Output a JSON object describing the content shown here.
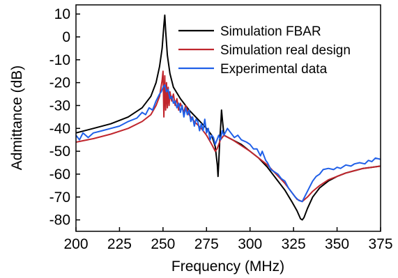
{
  "chart_data": {
    "type": "line",
    "title": "",
    "xlabel": "Frequency (MHz)",
    "ylabel": "Admittance (dB)",
    "xlim": [
      200,
      375
    ],
    "ylim": [
      -85,
      14
    ],
    "xticks": [
      200,
      225,
      250,
      275,
      300,
      325,
      350,
      375
    ],
    "yticks": [
      10,
      0,
      -10,
      -20,
      -30,
      -40,
      -50,
      -60,
      -70,
      -80
    ],
    "grid": false,
    "legend_position": "top-right",
    "series": [
      {
        "name": "Simulation FBAR",
        "color": "#000000",
        "points": [
          [
            200,
            -42
          ],
          [
            210,
            -40
          ],
          [
            220,
            -38
          ],
          [
            230,
            -35
          ],
          [
            238,
            -31
          ],
          [
            243,
            -26
          ],
          [
            246,
            -20
          ],
          [
            248,
            -13
          ],
          [
            249.5,
            -5
          ],
          [
            250.5,
            5
          ],
          [
            251,
            9.5
          ],
          [
            251.5,
            3
          ],
          [
            252.5,
            -8
          ],
          [
            254,
            -16
          ],
          [
            256,
            -22
          ],
          [
            260,
            -27
          ],
          [
            265,
            -32
          ],
          [
            270,
            -36
          ],
          [
            275,
            -40
          ],
          [
            278,
            -43
          ],
          [
            280,
            -48
          ],
          [
            281.2,
            -56
          ],
          [
            281.6,
            -61
          ],
          [
            282,
            -55
          ],
          [
            282.6,
            -45
          ],
          [
            283.2,
            -38
          ],
          [
            283.6,
            -32
          ],
          [
            284.2,
            -37
          ],
          [
            285,
            -43
          ],
          [
            290,
            -45
          ],
          [
            295,
            -47
          ],
          [
            300,
            -50
          ],
          [
            305,
            -53
          ],
          [
            310,
            -57
          ],
          [
            315,
            -62
          ],
          [
            320,
            -67
          ],
          [
            324,
            -72
          ],
          [
            327,
            -76
          ],
          [
            329,
            -79.5
          ],
          [
            330,
            -80
          ],
          [
            331,
            -79
          ],
          [
            333,
            -75
          ],
          [
            336,
            -70
          ],
          [
            340,
            -66
          ],
          [
            345,
            -63
          ],
          [
            350,
            -61
          ],
          [
            355,
            -59.5
          ],
          [
            360,
            -58.5
          ],
          [
            365,
            -57.5
          ],
          [
            370,
            -57
          ],
          [
            375,
            -56.5
          ]
        ]
      },
      {
        "name": "Simulation real design",
        "color": "#c0262d",
        "points": [
          [
            200,
            -46
          ],
          [
            210,
            -44.5
          ],
          [
            220,
            -42.5
          ],
          [
            230,
            -40
          ],
          [
            238,
            -37
          ],
          [
            243,
            -34
          ],
          [
            246,
            -30
          ],
          [
            248,
            -26
          ],
          [
            249.5,
            -19
          ],
          [
            250,
            -15
          ],
          [
            250.5,
            -35
          ],
          [
            251,
            -17
          ],
          [
            251.5,
            -32
          ],
          [
            252,
            -20
          ],
          [
            252.5,
            -31
          ],
          [
            253,
            -22
          ],
          [
            253.5,
            -30
          ],
          [
            254,
            -24
          ],
          [
            255,
            -28
          ],
          [
            256,
            -25
          ],
          [
            257,
            -30
          ],
          [
            258,
            -27
          ],
          [
            259,
            -32
          ],
          [
            260,
            -29
          ],
          [
            262,
            -33
          ],
          [
            263,
            -30
          ],
          [
            265,
            -34
          ],
          [
            268,
            -37
          ],
          [
            272,
            -40
          ],
          [
            275,
            -43
          ],
          [
            278,
            -47
          ],
          [
            280,
            -50
          ],
          [
            281,
            -49
          ],
          [
            282,
            -47
          ],
          [
            283,
            -45
          ],
          [
            285,
            -43
          ],
          [
            290,
            -45
          ],
          [
            295,
            -47.5
          ],
          [
            300,
            -50
          ],
          [
            305,
            -53
          ],
          [
            310,
            -56
          ],
          [
            315,
            -60
          ],
          [
            320,
            -64
          ],
          [
            324,
            -68
          ],
          [
            327,
            -71
          ],
          [
            330,
            -72
          ],
          [
            333,
            -70
          ],
          [
            336,
            -67.5
          ],
          [
            340,
            -65
          ],
          [
            345,
            -62.5
          ],
          [
            350,
            -61
          ],
          [
            355,
            -59.5
          ],
          [
            360,
            -58.5
          ],
          [
            365,
            -57.5
          ],
          [
            370,
            -57
          ],
          [
            375,
            -56.5
          ]
        ]
      },
      {
        "name": "Experimental data",
        "color": "#1f5fe8",
        "points": [
          [
            200,
            -43
          ],
          [
            202,
            -45
          ],
          [
            204,
            -42
          ],
          [
            207,
            -44
          ],
          [
            210,
            -42
          ],
          [
            215,
            -41
          ],
          [
            220,
            -40
          ],
          [
            225,
            -39
          ],
          [
            230,
            -37
          ],
          [
            235,
            -35.5
          ],
          [
            238,
            -33
          ],
          [
            240,
            -34
          ],
          [
            242,
            -31
          ],
          [
            244,
            -32
          ],
          [
            246,
            -28
          ],
          [
            248,
            -25
          ],
          [
            249,
            -24
          ],
          [
            250,
            -22
          ],
          [
            251,
            -21
          ],
          [
            252,
            -24
          ],
          [
            253,
            -23
          ],
          [
            254,
            -27
          ],
          [
            255,
            -26
          ],
          [
            256,
            -29
          ],
          [
            257,
            -28
          ],
          [
            258,
            -31
          ],
          [
            259,
            -29
          ],
          [
            260,
            -33
          ],
          [
            261,
            -30
          ],
          [
            262,
            -35
          ],
          [
            263,
            -31
          ],
          [
            264,
            -34
          ],
          [
            265,
            -32
          ],
          [
            266,
            -37
          ],
          [
            267,
            -35
          ],
          [
            268,
            -39
          ],
          [
            269,
            -36
          ],
          [
            270,
            -37
          ],
          [
            271,
            -41
          ],
          [
            272,
            -38
          ],
          [
            273,
            -41
          ],
          [
            274,
            -36
          ],
          [
            275,
            -42
          ],
          [
            276,
            -40
          ],
          [
            277,
            -45
          ],
          [
            278,
            -43
          ],
          [
            279,
            -44
          ],
          [
            280,
            -47
          ],
          [
            281,
            -45
          ],
          [
            282,
            -43
          ],
          [
            283,
            -45
          ],
          [
            284,
            -41
          ],
          [
            285,
            -43
          ],
          [
            287,
            -40
          ],
          [
            289,
            -42
          ],
          [
            291,
            -44
          ],
          [
            293,
            -43
          ],
          [
            295,
            -45
          ],
          [
            298,
            -46
          ],
          [
            300,
            -47
          ],
          [
            302,
            -49
          ],
          [
            304,
            -49
          ],
          [
            306,
            -52
          ],
          [
            307,
            -50
          ],
          [
            309,
            -54
          ],
          [
            310,
            -55
          ],
          [
            312,
            -58
          ],
          [
            314,
            -59
          ],
          [
            316,
            -60
          ],
          [
            318,
            -62
          ],
          [
            320,
            -63
          ],
          [
            322,
            -66
          ],
          [
            324,
            -68
          ],
          [
            326,
            -70
          ],
          [
            328,
            -71.5
          ],
          [
            330,
            -72
          ],
          [
            332,
            -69
          ],
          [
            334,
            -66
          ],
          [
            336,
            -63
          ],
          [
            338,
            -61
          ],
          [
            340,
            -60
          ],
          [
            342,
            -58
          ],
          [
            345,
            -57.5
          ],
          [
            348,
            -58
          ],
          [
            350,
            -57
          ],
          [
            352,
            -57.5
          ],
          [
            355,
            -56
          ],
          [
            358,
            -56.5
          ],
          [
            360,
            -55.5
          ],
          [
            363,
            -55
          ],
          [
            366,
            -55.5
          ],
          [
            368,
            -54
          ],
          [
            370,
            -54.5
          ],
          [
            372,
            -53
          ],
          [
            375,
            -53.5
          ]
        ]
      }
    ]
  }
}
